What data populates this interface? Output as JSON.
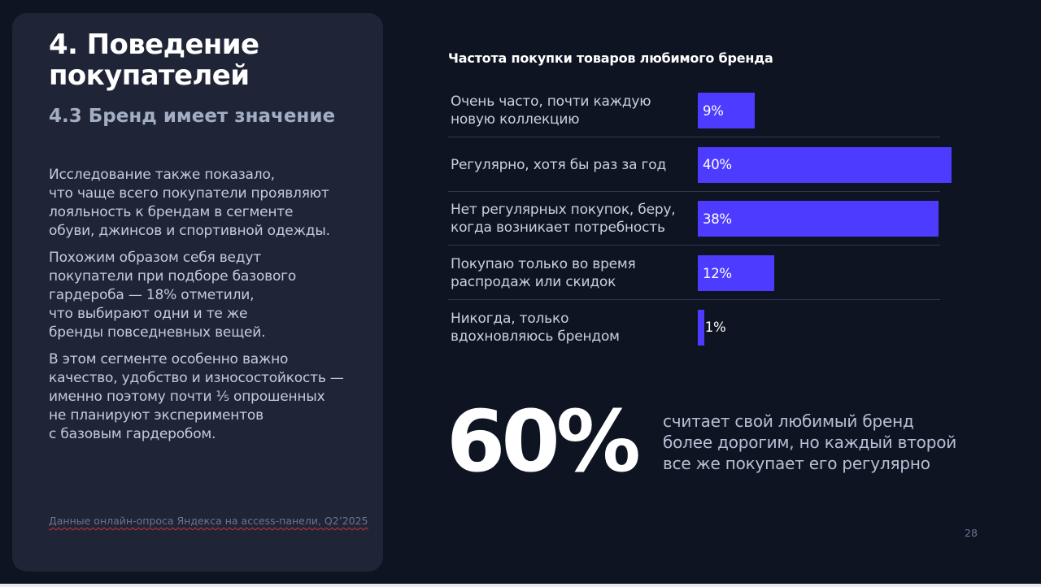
{
  "left": {
    "title": "4. Поведение покупателей",
    "subtitle": "4.3 Бренд имеет значение",
    "paragraphs": [
      "Исследование также показало,\nчто чаще всего покупатели проявляют\nлояльность к брендам в сегменте\nобуви, джинсов и спортивной одежды.",
      "Похожим образом себя ведут\nпокупатели при подборе базового\nгардероба — 18% отметили,\nчто выбирают одни и те же\nбренды повседневных вещей.",
      "В этом сегменте особенно важно\nкачество, удобство и износостойкость —\nименно поэтому почти ⅕ опрошенных\nне планируют экспериментов\nс базовым гардеробом."
    ],
    "footnote": "Данные онлайн-опроса Яндекса на access-панели, Q2’2025"
  },
  "chart_data": {
    "type": "bar",
    "orientation": "horizontal",
    "title": "Частота покупки товаров любимого бренда",
    "categories": [
      "Очень часто, почти каждую\nновую коллекцию",
      "Регулярно, хотя бы раз за год",
      "Нет регулярных покупок, беру,\nкогда возникает потребность",
      "Покупаю только во время\nраспродаж или скидок",
      "Никогда, только\nвдохновляюсь брендом"
    ],
    "values": [
      9,
      40,
      38,
      12,
      1
    ],
    "value_labels": [
      "9%",
      "40%",
      "38%",
      "12%",
      "1%"
    ],
    "unit": "%",
    "xlim": [
      0,
      40
    ],
    "bar_color": "#4d3cff",
    "grid": false
  },
  "highlight": {
    "value": "60%",
    "text": "считает свой любимый бренд\nболее дорогим, но каждый второй\nвсе же покупает его регулярно"
  },
  "page_number": "28",
  "colors": {
    "background": "#0f1422",
    "panel": "#1f2536",
    "accent": "#4d3cff"
  }
}
